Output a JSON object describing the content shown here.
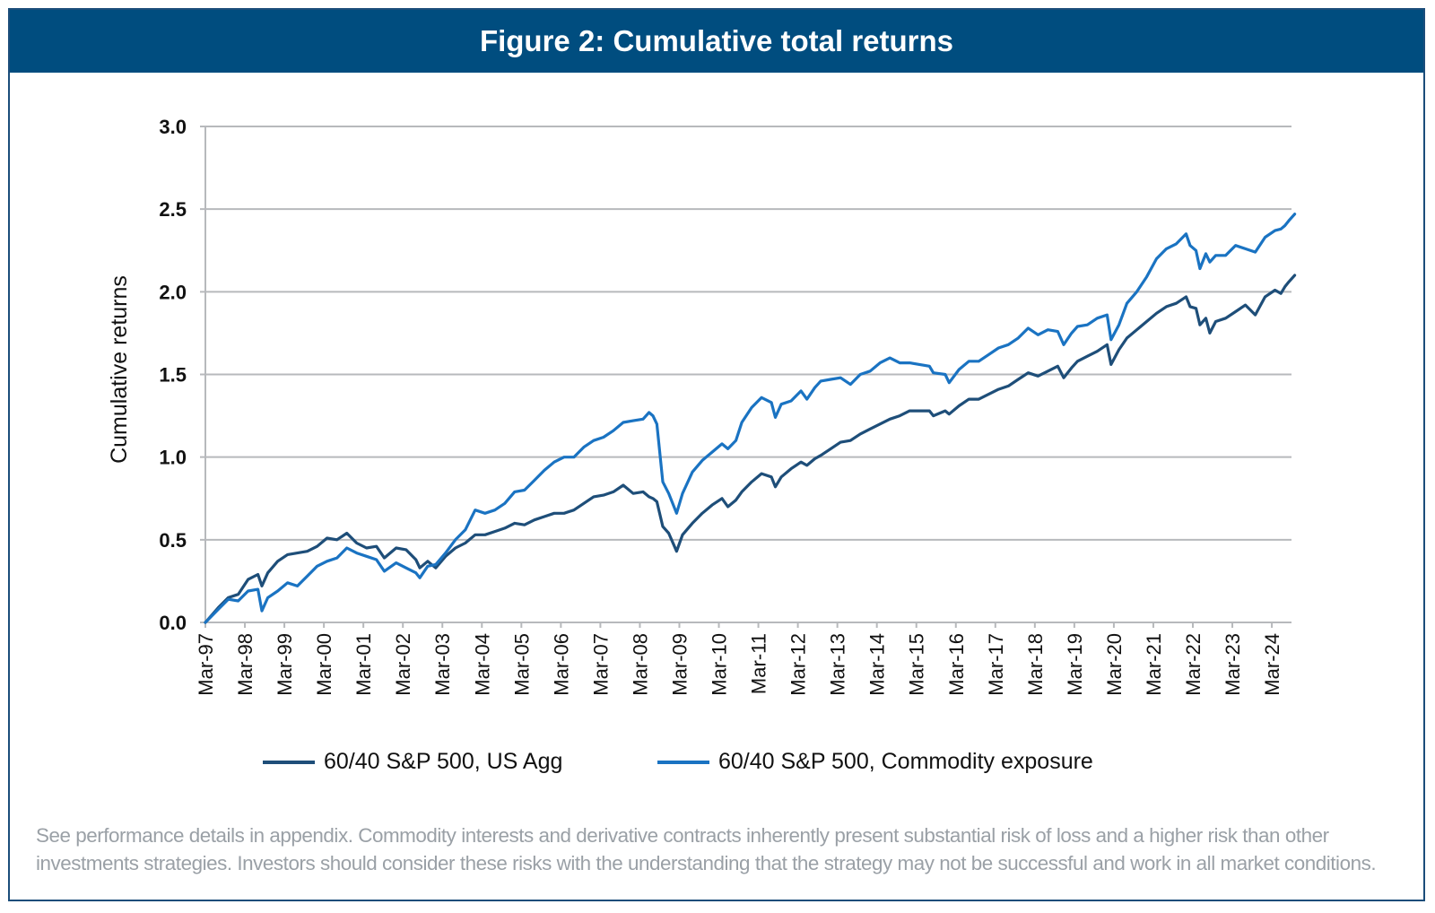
{
  "title": "Figure 2: Cumulative total returns",
  "footnote": {
    "line1": "See performance details in appendix. Commodity interests and derivative contracts inherently present substantial risk of loss and a higher risk than other",
    "line2": "investments strategies. Investors should consider these risks with the understanding that the strategy may not be successful and work in all market conditions."
  },
  "colors": {
    "frame": "#1b4d7a",
    "title_bar": "#004d7f",
    "grid": "#b7b9bc"
  },
  "chart_data": {
    "type": "line",
    "title": "Figure 2: Cumulative total returns",
    "xlabel": "",
    "ylabel": "Cumulative returns",
    "ylim": [
      0,
      3.0
    ],
    "xlim": [
      1997.17,
      2024.75
    ],
    "yticks": [
      0.0,
      0.5,
      1.0,
      1.5,
      2.0,
      2.5,
      3.0
    ],
    "ytick_labels": [
      "0.0",
      "0.5",
      "1.0",
      "1.5",
      "2.0",
      "2.5",
      "3.0"
    ],
    "xticks": [
      1997.17,
      1998.17,
      1999.17,
      2000.17,
      2001.17,
      2002.17,
      2003.17,
      2004.17,
      2005.17,
      2006.17,
      2007.17,
      2008.17,
      2009.17,
      2010.17,
      2011.17,
      2012.17,
      2013.17,
      2014.17,
      2015.17,
      2016.17,
      2017.17,
      2018.17,
      2019.17,
      2020.17,
      2021.17,
      2022.17,
      2023.17,
      2024.17
    ],
    "xtick_labels": [
      "Mar-97",
      "Mar-98",
      "Mar-99",
      "Mar-00",
      "Mar-01",
      "Mar-02",
      "Mar-03",
      "Mar-04",
      "Mar-05",
      "Mar-06",
      "Mar-07",
      "Mar-08",
      "Mar-09",
      "Mar-10",
      "Mar-11",
      "Mar-12",
      "Mar-13",
      "Mar-14",
      "Mar-15",
      "Mar-16",
      "Mar-17",
      "Mar-18",
      "Mar-19",
      "Mar-20",
      "Mar-21",
      "Mar-22",
      "Mar-23",
      "Mar-24"
    ],
    "grid": true,
    "legend_position": "bottom",
    "x": [
      1997.17,
      1997.5,
      1997.75,
      1998.0,
      1998.25,
      1998.5,
      1998.6,
      1998.75,
      1999.0,
      1999.25,
      1999.5,
      1999.75,
      2000.0,
      2000.25,
      2000.5,
      2000.75,
      2001.0,
      2001.25,
      2001.5,
      2001.7,
      2002.0,
      2002.25,
      2002.5,
      2002.6,
      2002.8,
      2003.0,
      2003.25,
      2003.5,
      2003.75,
      2004.0,
      2004.25,
      2004.5,
      2004.75,
      2005.0,
      2005.25,
      2005.5,
      2005.75,
      2006.0,
      2006.25,
      2006.5,
      2006.75,
      2007.0,
      2007.25,
      2007.5,
      2007.75,
      2008.0,
      2008.25,
      2008.4,
      2008.5,
      2008.6,
      2008.75,
      2008.9,
      2009.1,
      2009.25,
      2009.5,
      2009.75,
      2010.0,
      2010.25,
      2010.4,
      2010.6,
      2010.75,
      2011.0,
      2011.25,
      2011.5,
      2011.6,
      2011.75,
      2012.0,
      2012.25,
      2012.4,
      2012.6,
      2012.75,
      2013.0,
      2013.25,
      2013.5,
      2013.75,
      2014.0,
      2014.25,
      2014.5,
      2014.75,
      2015.0,
      2015.25,
      2015.5,
      2015.6,
      2015.9,
      2016.0,
      2016.25,
      2016.5,
      2016.75,
      2017.0,
      2017.25,
      2017.5,
      2017.75,
      2018.0,
      2018.25,
      2018.5,
      2018.75,
      2018.9,
      2019.1,
      2019.25,
      2019.5,
      2019.75,
      2020.0,
      2020.1,
      2020.3,
      2020.5,
      2020.75,
      2021.0,
      2021.25,
      2021.5,
      2021.75,
      2022.0,
      2022.1,
      2022.25,
      2022.35,
      2022.5,
      2022.6,
      2022.75,
      2023.0,
      2023.25,
      2023.5,
      2023.75,
      2024.0,
      2024.25,
      2024.4,
      2024.5,
      2024.6,
      2024.75
    ],
    "series": [
      {
        "name": "60/40 S&P 500, US Agg",
        "color": "#1e4e79",
        "values": [
          0,
          0.09,
          0.15,
          0.17,
          0.26,
          0.29,
          0.22,
          0.3,
          0.37,
          0.41,
          0.42,
          0.43,
          0.46,
          0.51,
          0.5,
          0.54,
          0.48,
          0.45,
          0.46,
          0.39,
          0.45,
          0.44,
          0.38,
          0.33,
          0.37,
          0.33,
          0.4,
          0.45,
          0.48,
          0.53,
          0.53,
          0.55,
          0.57,
          0.6,
          0.59,
          0.62,
          0.64,
          0.66,
          0.66,
          0.68,
          0.72,
          0.76,
          0.77,
          0.79,
          0.83,
          0.78,
          0.79,
          0.76,
          0.75,
          0.73,
          0.58,
          0.54,
          0.43,
          0.53,
          0.6,
          0.66,
          0.71,
          0.75,
          0.7,
          0.74,
          0.79,
          0.85,
          0.9,
          0.88,
          0.82,
          0.88,
          0.93,
          0.97,
          0.95,
          0.99,
          1.01,
          1.05,
          1.09,
          1.1,
          1.14,
          1.17,
          1.2,
          1.23,
          1.25,
          1.28,
          1.28,
          1.28,
          1.25,
          1.28,
          1.26,
          1.31,
          1.35,
          1.35,
          1.38,
          1.41,
          1.43,
          1.47,
          1.51,
          1.49,
          1.52,
          1.55,
          1.48,
          1.54,
          1.58,
          1.61,
          1.64,
          1.68,
          1.56,
          1.65,
          1.72,
          1.77,
          1.82,
          1.87,
          1.91,
          1.93,
          1.97,
          1.91,
          1.9,
          1.8,
          1.84,
          1.75,
          1.82,
          1.84,
          1.88,
          1.92,
          1.86,
          1.97,
          2.01,
          1.99,
          2.03,
          2.06,
          2.1
        ]
      },
      {
        "name": "60/40 S&P 500, Commodity exposure",
        "color": "#1a73c2",
        "values": [
          0,
          0.08,
          0.14,
          0.13,
          0.19,
          0.2,
          0.07,
          0.15,
          0.19,
          0.24,
          0.22,
          0.28,
          0.34,
          0.37,
          0.39,
          0.45,
          0.42,
          0.4,
          0.38,
          0.31,
          0.36,
          0.33,
          0.3,
          0.27,
          0.34,
          0.35,
          0.42,
          0.5,
          0.56,
          0.68,
          0.66,
          0.68,
          0.72,
          0.79,
          0.8,
          0.86,
          0.92,
          0.97,
          1.0,
          1.0,
          1.06,
          1.1,
          1.12,
          1.16,
          1.21,
          1.22,
          1.23,
          1.27,
          1.25,
          1.2,
          0.85,
          0.78,
          0.66,
          0.78,
          0.91,
          0.98,
          1.03,
          1.08,
          1.05,
          1.1,
          1.21,
          1.3,
          1.36,
          1.33,
          1.24,
          1.32,
          1.34,
          1.4,
          1.35,
          1.42,
          1.46,
          1.47,
          1.48,
          1.44,
          1.5,
          1.52,
          1.57,
          1.6,
          1.57,
          1.57,
          1.56,
          1.55,
          1.51,
          1.5,
          1.45,
          1.53,
          1.58,
          1.58,
          1.62,
          1.66,
          1.68,
          1.72,
          1.78,
          1.74,
          1.77,
          1.76,
          1.68,
          1.75,
          1.79,
          1.8,
          1.84,
          1.86,
          1.71,
          1.8,
          1.93,
          2.0,
          2.09,
          2.2,
          2.26,
          2.29,
          2.35,
          2.28,
          2.25,
          2.14,
          2.23,
          2.18,
          2.22,
          2.22,
          2.28,
          2.26,
          2.24,
          2.33,
          2.37,
          2.38,
          2.4,
          2.43,
          2.47
        ]
      }
    ]
  }
}
